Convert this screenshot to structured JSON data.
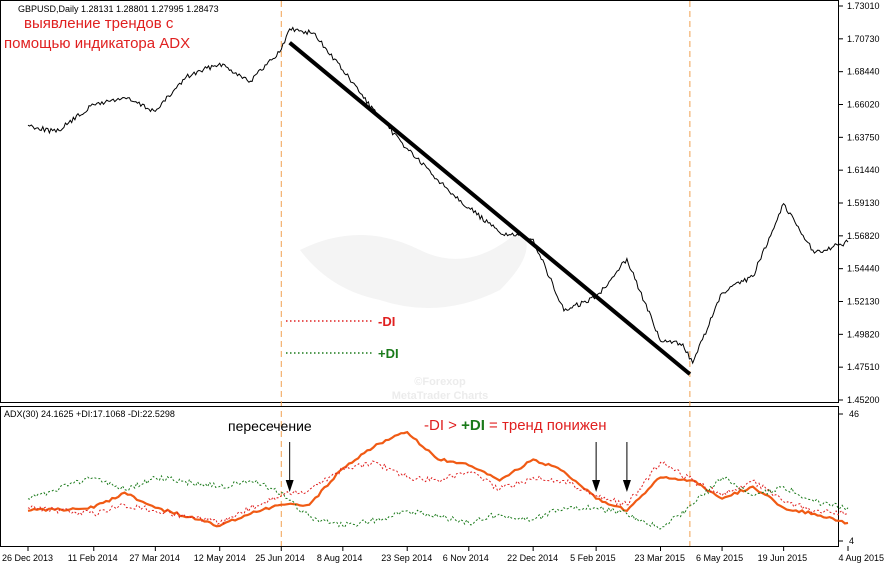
{
  "chart_data": [
    {
      "type": "line",
      "header": "GBPUSD,Daily  1.28131 1.28801 1.27995 1.28473",
      "annotation": [
        "выявление трендов с",
        "помощью индикатора ADX"
      ],
      "ylim": [
        1.4452,
        1.7302
      ],
      "yticks": [
        "1.73010",
        "1.70730",
        "1.68440",
        "1.66020",
        "1.63750",
        "1.61440",
        "1.59130",
        "1.56820",
        "1.54440",
        "1.52130",
        "1.49820",
        "1.47510",
        "1.45200"
      ],
      "xticks": [
        "26 Dec 2013",
        "11 Feb 2014",
        "27 Mar 2014",
        "12 May 2014",
        "25 Jun 2014",
        "8 Aug 2014",
        "23 Sep 2014",
        "6 Nov 2014",
        "22 Dec 2014",
        "5 Feb 2015",
        "23 Mar 2015",
        "6 May 2015",
        "19 Jun 2015",
        "4 Aug 2015"
      ],
      "trendline": {
        "from": [
          "1 Jul 2014",
          1.705
        ],
        "to": [
          "13 Apr 2015",
          1.464
        ]
      },
      "vlines": [
        "25 Jun 2014",
        "13 Apr 2015"
      ],
      "legend": [
        {
          "label": "-DI",
          "color": "#e02020",
          "style": "dotted"
        },
        {
          "label": "+DI",
          "color": "#1a7a1a",
          "style": "dotted"
        }
      ],
      "watermark": [
        "©Forexop",
        "MetaTrader Charts"
      ],
      "series": [
        {
          "name": "GBPUSD",
          "color": "#000000",
          "x": [
            "26 Dec 2013",
            "15 Jan 2014",
            "11 Feb 2014",
            "5 Mar 2014",
            "27 Mar 2014",
            "18 Apr 2014",
            "12 May 2014",
            "3 Jun 2014",
            "25 Jun 2014",
            "1 Jul 2014",
            "18 Jul 2014",
            "8 Aug 2014",
            "1 Sep 2014",
            "23 Sep 2014",
            "15 Oct 2014",
            "6 Nov 2014",
            "28 Nov 2014",
            "22 Dec 2014",
            "13 Jan 2015",
            "5 Feb 2015",
            "27 Feb 2015",
            "23 Mar 2015",
            "8 Apr 2015",
            "15 Apr 2015",
            "6 May 2015",
            "28 May 2015",
            "19 Jun 2015",
            "11 Jul 2015",
            "4 Aug 2015"
          ],
          "values": [
            1.645,
            1.64,
            1.66,
            1.665,
            1.655,
            1.68,
            1.69,
            1.677,
            1.7,
            1.715,
            1.712,
            1.685,
            1.653,
            1.628,
            1.605,
            1.585,
            1.567,
            1.562,
            1.51,
            1.52,
            1.548,
            1.488,
            1.486,
            1.472,
            1.523,
            1.535,
            1.588,
            1.552,
            1.56
          ]
        }
      ]
    },
    {
      "type": "line",
      "header": "ADX(30) 24.1625 +DI:17.1068 -DI:22.5298",
      "ylim": [
        4,
        46
      ],
      "yticks": [
        "46",
        "4"
      ],
      "annotations": {
        "crossing": "пересечение",
        "rule_minus": "-DI",
        "rule_gt": " > ",
        "rule_plus": "+DI",
        "rule_eq": " = ",
        "rule_result": "тренд понижен"
      },
      "arrows_at": [
        "1 Jul 2014",
        "5 Feb 2015",
        "27 Feb 2015"
      ],
      "series": [
        {
          "name": "ADX",
          "color": "#f05a14",
          "x": [
            "26 Dec 2013",
            "11 Feb 2014",
            "5 Mar 2014",
            "27 Mar 2014",
            "12 May 2014",
            "3 Jun 2014",
            "25 Jun 2014",
            "15 Jul 2014",
            "8 Aug 2014",
            "1 Sep 2014",
            "23 Sep 2014",
            "15 Oct 2014",
            "6 Nov 2014",
            "28 Nov 2014",
            "22 Dec 2014",
            "13 Jan 2015",
            "5 Feb 2015",
            "27 Feb 2015",
            "23 Mar 2015",
            "15 Apr 2015",
            "6 May 2015",
            "28 May 2015",
            "19 Jun 2015",
            "11 Jul 2015",
            "4 Aug 2015"
          ],
          "values": [
            14,
            15,
            20,
            15,
            9,
            13,
            16,
            16,
            28,
            36,
            40,
            31,
            29,
            24,
            31,
            27,
            18,
            14,
            25,
            24,
            18,
            22,
            15,
            13,
            10
          ]
        },
        {
          "name": "-DI",
          "color": "#e02020",
          "x": [
            "26 Dec 2013",
            "11 Feb 2014",
            "5 Mar 2014",
            "27 Mar 2014",
            "12 May 2014",
            "3 Jun 2014",
            "25 Jun 2014",
            "15 Jul 2014",
            "8 Aug 2014",
            "1 Sep 2014",
            "23 Sep 2014",
            "15 Oct 2014",
            "6 Nov 2014",
            "28 Nov 2014",
            "22 Dec 2014",
            "13 Jan 2015",
            "5 Feb 2015",
            "27 Feb 2015",
            "23 Mar 2015",
            "15 Apr 2015",
            "6 May 2015",
            "28 May 2015",
            "19 Jun 2015",
            "11 Jul 2015",
            "4 Aug 2015"
          ],
          "values": [
            15,
            13,
            16,
            14,
            10,
            15,
            19,
            21,
            28,
            30,
            25,
            24,
            27,
            21,
            25,
            24,
            19,
            16,
            30,
            24,
            19,
            24,
            17,
            14,
            13
          ]
        },
        {
          "name": "+DI",
          "color": "#1a7a1a",
          "x": [
            "26 Dec 2013",
            "11 Feb 2014",
            "5 Mar 2014",
            "27 Mar 2014",
            "12 May 2014",
            "3 Jun 2014",
            "25 Jun 2014",
            "15 Jul 2014",
            "8 Aug 2014",
            "1 Sep 2014",
            "23 Sep 2014",
            "15 Oct 2014",
            "6 Nov 2014",
            "28 Nov 2014",
            "22 Dec 2014",
            "13 Jan 2015",
            "5 Feb 2015",
            "27 Feb 2015",
            "23 Mar 2015",
            "15 Apr 2015",
            "6 May 2015",
            "28 May 2015",
            "19 Jun 2015",
            "11 Jul 2015",
            "4 Aug 2015"
          ],
          "values": [
            18,
            25,
            21,
            25,
            22,
            24,
            20,
            12,
            9,
            11,
            14,
            12,
            10,
            13,
            11,
            15,
            15,
            13,
            8,
            16,
            25,
            19,
            22,
            17,
            15
          ]
        }
      ]
    }
  ]
}
